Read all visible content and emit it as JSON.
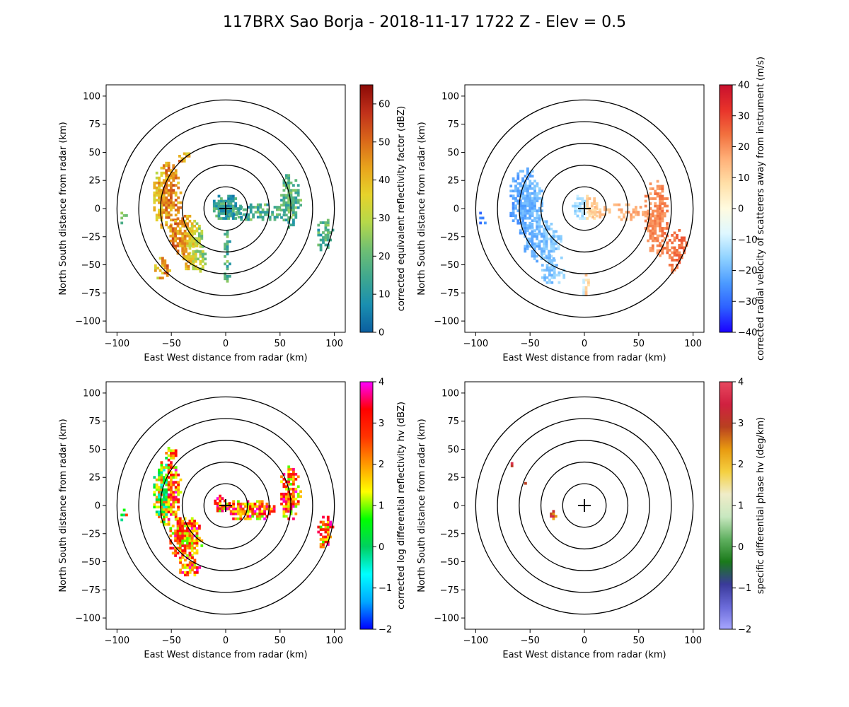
{
  "figure_title": "117BRX Sao Borja - 2018-11-17 1722 Z -  Elev = 0.5",
  "chart_data": [
    {
      "type": "heatmap",
      "panel": "top-left",
      "field": "reflectivity",
      "xlabel": "East West distance from radar (km)",
      "ylabel": "North South distance from radar (km)",
      "xlim": [
        -110,
        110
      ],
      "ylim": [
        -110,
        110
      ],
      "xticks": [
        -100,
        -50,
        0,
        50,
        100
      ],
      "yticks": [
        -100,
        -75,
        -50,
        -25,
        0,
        25,
        50,
        75,
        100
      ],
      "range_rings_km": [
        20,
        40,
        60,
        80,
        100
      ],
      "colorbar": {
        "label": "corrected equivalent reflectivity factor (dBZ)",
        "min": 0,
        "max": 65,
        "ticks": [
          0,
          10,
          20,
          30,
          40,
          50,
          60
        ],
        "colormap": [
          "#0b5e9f",
          "#1a8fb0",
          "#3fa88f",
          "#6fbf73",
          "#b6d84a",
          "#e6d32b",
          "#e8a31c",
          "#d9661a",
          "#c0301a",
          "#8b0a06"
        ]
      }
    },
    {
      "type": "heatmap",
      "panel": "top-right",
      "field": "velocity",
      "xlabel": "East West distance from radar (km)",
      "ylabel": "North South distance from radar (km)",
      "xlim": [
        -110,
        110
      ],
      "ylim": [
        -110,
        110
      ],
      "xticks": [
        -100,
        -50,
        0,
        50,
        100
      ],
      "yticks": [
        -100,
        -75,
        -50,
        -25,
        0,
        25,
        50,
        75,
        100
      ],
      "range_rings_km": [
        20,
        40,
        60,
        80,
        100
      ],
      "colorbar": {
        "label": "corrected radial velocity of scatterers away from instrument (m/s)",
        "min": -40,
        "max": 40,
        "ticks": [
          -40,
          -30,
          -20,
          -10,
          0,
          10,
          20,
          30,
          40
        ],
        "colormap": [
          "#1a00ff",
          "#2d60ff",
          "#4c9bff",
          "#8fd2ff",
          "#dff8ff",
          "#fffbe0",
          "#ffe0a8",
          "#ffb078",
          "#f2703e",
          "#e8322a",
          "#c8102e"
        ]
      }
    },
    {
      "type": "heatmap",
      "panel": "bottom-left",
      "field": "differential_reflectivity",
      "xlabel": "East West distance from radar (km)",
      "ylabel": "North South distance from radar (km)",
      "xlim": [
        -110,
        110
      ],
      "ylim": [
        -110,
        110
      ],
      "xticks": [
        -100,
        -50,
        0,
        50,
        100
      ],
      "yticks": [
        -100,
        -75,
        -50,
        -25,
        0,
        25,
        50,
        75,
        100
      ],
      "range_rings_km": [
        20,
        40,
        60,
        80,
        100
      ],
      "colorbar": {
        "label": "corrected log differential reflectivity hv (dBZ)",
        "min": -2,
        "max": 4,
        "ticks": [
          -2,
          -1,
          0,
          1,
          2,
          3,
          4
        ],
        "colormap": [
          "#0000ff",
          "#00a8ff",
          "#00ffff",
          "#00d060",
          "#00ff00",
          "#ffff00",
          "#ff9900",
          "#ff3300",
          "#ff0000",
          "#ff00ff"
        ]
      }
    },
    {
      "type": "heatmap",
      "panel": "bottom-right",
      "field": "specific_differential_phase",
      "xlabel": "East West distance from radar (km)",
      "ylabel": "North South distance from radar (km)",
      "xlim": [
        -110,
        110
      ],
      "ylim": [
        -110,
        110
      ],
      "xticks": [
        -100,
        -50,
        0,
        50,
        100
      ],
      "yticks": [
        -100,
        -75,
        -50,
        -25,
        0,
        25,
        50,
        75,
        100
      ],
      "range_rings_km": [
        20,
        40,
        60,
        80,
        100
      ],
      "colorbar": {
        "label": "specific differential phase hv (deg/km)",
        "min": -2,
        "max": 4,
        "ticks": [
          -2,
          -1,
          0,
          1,
          2,
          3,
          4
        ],
        "colormap": [
          "#a6a6ff",
          "#6a6ad8",
          "#3a3a9a",
          "#1a7a1a",
          "#60b060",
          "#c8e8c0",
          "#f0ecc8",
          "#f5d040",
          "#e89a10",
          "#b84020",
          "#d02040",
          "#e84860"
        ]
      }
    }
  ]
}
